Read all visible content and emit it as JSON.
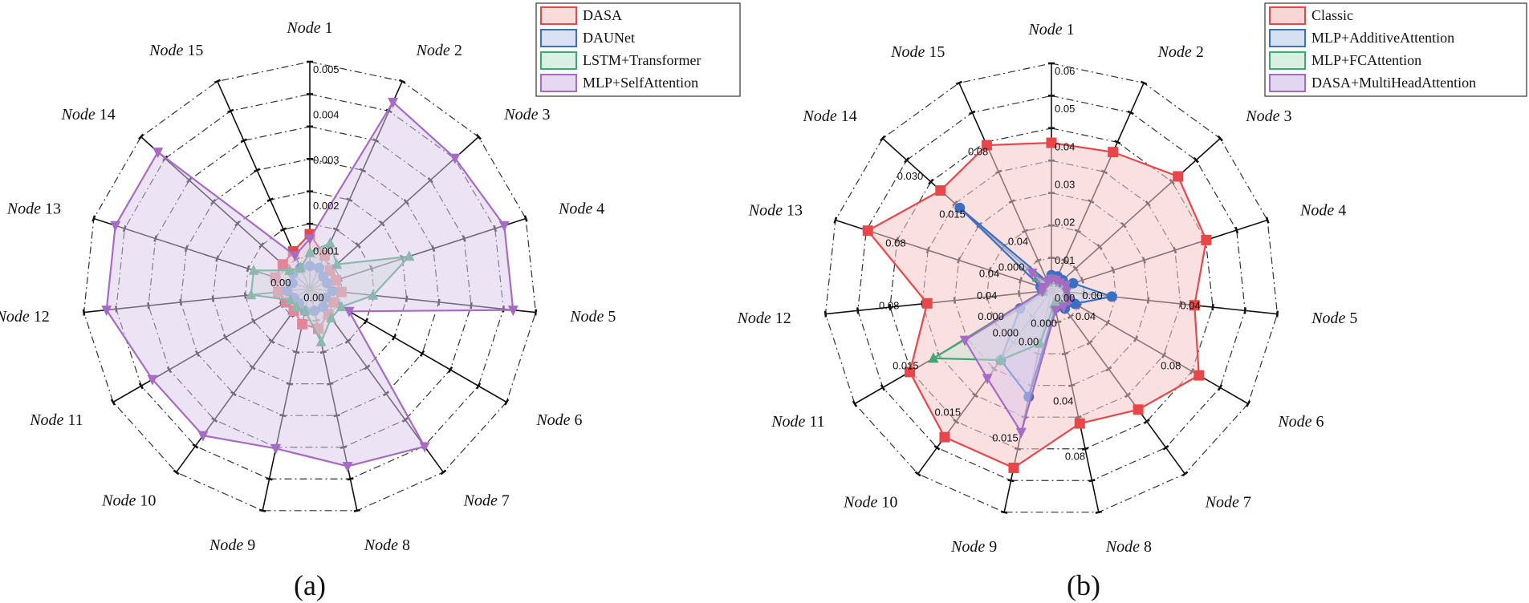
{
  "chart_data": [
    {
      "type": "radar",
      "panel_label": "(a)",
      "axes": [
        "Node 1",
        "Node 2",
        "Node 3",
        "Node 4",
        "Node 5",
        "Node 6",
        "Node 7",
        "Node 8",
        "Node 9",
        "Node 10",
        "Node 11",
        "Node 12",
        "Node 13",
        "Node 14",
        "Node 15"
      ],
      "rlim": [
        0,
        0.005
      ],
      "grid": true,
      "legend_position": "top-right",
      "radial_tick_labels": [
        {
          "axis": 0,
          "labels": [
            "0.001",
            "0.002",
            "0.003",
            "0.004",
            "0.005"
          ]
        },
        {
          "axis": 5,
          "labels": [
            "0.00"
          ]
        },
        {
          "axis": 12,
          "labels": [
            "0.00"
          ]
        }
      ],
      "series": [
        {
          "name": "DASA",
          "color": "#e8474a",
          "fill": "#f8c7c8",
          "fill_opacity": 0.45,
          "marker": "square",
          "values": [
            0.0012,
            0.0008,
            0.0006,
            0.0006,
            0.0007,
            0.0006,
            0.0007,
            0.0009,
            0.0008,
            0.0006,
            0.0006,
            0.0007,
            0.0008,
            0.0008,
            0.0009
          ]
        },
        {
          "name": "DAUNet",
          "color": "#3b6fc4",
          "fill": "#c3d3ec",
          "fill_opacity": 0.45,
          "marker": "circle",
          "values": [
            0.0005,
            0.0005,
            0.0004,
            0.0004,
            0.0005,
            0.0004,
            0.0005,
            0.0005,
            0.0005,
            0.0004,
            0.0004,
            0.0005,
            0.0004,
            0.0005,
            0.0005
          ]
        },
        {
          "name": "LSTM+Transformer",
          "color": "#3fa872",
          "fill": "#c8e8d6",
          "fill_opacity": 0.45,
          "marker": "triangle-up",
          "values": [
            0.0008,
            0.0011,
            0.0008,
            0.0023,
            0.0014,
            0.0008,
            0.0008,
            0.0012,
            0.0005,
            0.0005,
            0.0005,
            0.0013,
            0.0013,
            0.0006,
            0.0005
          ]
        },
        {
          "name": "MLP+SelfAttention",
          "color": "#a66bc4",
          "fill": "#dac8ea",
          "fill_opacity": 0.5,
          "marker": "triangle-down",
          "values": [
            0.0011,
            0.0045,
            0.0043,
            0.0045,
            0.0045,
            0.001,
            0.0043,
            0.004,
            0.0036,
            0.004,
            0.004,
            0.0045,
            0.0045,
            0.0045,
            0.0008
          ]
        }
      ]
    },
    {
      "type": "radar",
      "panel_label": "(b)",
      "axes": [
        "Node 1",
        "Node 2",
        "Node 3",
        "Node 4",
        "Node 5",
        "Node 6",
        "Node 7",
        "Node 8",
        "Node 9",
        "Node 10",
        "Node 11",
        "Node 12",
        "Node 13",
        "Node 14",
        "Node 15"
      ],
      "axis_ranges_note": "each axis has its own radial scale",
      "rlim_per_axis": [
        [
          0,
          0.06
        ],
        [
          0,
          0.06
        ],
        [
          0,
          0.06
        ],
        [
          0,
          0.06
        ],
        [
          0,
          0.06
        ],
        [
          0,
          0.1
        ],
        [
          0,
          0.1
        ],
        [
          0,
          0.1
        ],
        [
          0,
          0.025
        ],
        [
          0,
          0.025
        ],
        [
          0,
          0.025
        ],
        [
          0,
          0.1
        ],
        [
          0,
          0.1
        ],
        [
          0,
          0.035
        ],
        [
          0,
          0.1
        ]
      ],
      "grid": true,
      "legend_position": "top-right",
      "radial_tick_labels": [
        {
          "axis": 0,
          "labels": [
            "0.00",
            "0.01",
            "0.02",
            "0.03",
            "0.04",
            "0.05",
            "0.06"
          ]
        },
        {
          "axis": 4,
          "labels": [
            "0.00",
            "0.04"
          ]
        },
        {
          "axis": 5,
          "labels": [
            "0.04",
            "0.08"
          ]
        },
        {
          "axis": 7,
          "labels": [
            "0.000",
            "0.04",
            "0.08"
          ]
        },
        {
          "axis": 8,
          "labels": [
            "0.00",
            "0.015"
          ]
        },
        {
          "axis": 9,
          "labels": [
            "0.000",
            "0.015"
          ]
        },
        {
          "axis": 10,
          "labels": [
            "0.000",
            "0.015"
          ]
        },
        {
          "axis": 11,
          "labels": [
            "0.04",
            "0.08"
          ]
        },
        {
          "axis": 12,
          "labels": [
            "0.04",
            "0.08"
          ]
        },
        {
          "axis": 13,
          "labels": [
            "0.000",
            "0.015",
            "0.030"
          ]
        },
        {
          "axis": 14,
          "labels": [
            "0.04",
            "0.08"
          ]
        }
      ],
      "series": [
        {
          "name": "Classic",
          "color": "#e8474a",
          "fill": "#f8c7c8",
          "fill_opacity": 0.55,
          "marker": "square",
          "values": [
            0.039,
            0.04,
            0.045,
            0.043,
            0.038,
            0.075,
            0.065,
            0.06,
            0.02,
            0.02,
            0.018,
            0.055,
            0.085,
            0.023,
            0.07
          ]
        },
        {
          "name": "MLP+AdditiveAttention",
          "color": "#3b6fc4",
          "fill": "#c3d3ec",
          "fill_opacity": 0.5,
          "marker": "circle",
          "values": [
            0.004,
            0.004,
            0.004,
            0.006,
            0.016,
            0.012,
            0.01,
            0.008,
            0.012,
            0.0095,
            0.004,
            0.004,
            0.005,
            0.019,
            0.004
          ]
        },
        {
          "name": "MLP+FCAttention",
          "color": "#3fa872",
          "fill": "#c8e8d6",
          "fill_opacity": 0.5,
          "marker": "triangle-up",
          "values": [
            0.003,
            0.003,
            0.003,
            0.004,
            0.004,
            0.008,
            0.007,
            0.006,
            0.006,
            0.0095,
            0.015,
            0.004,
            0.004,
            0.003,
            0.004
          ]
        },
        {
          "name": "DASA+MultiHeadAttention",
          "color": "#a66bc4",
          "fill": "#dac8ea",
          "fill_opacity": 0.55,
          "marker": "triangle-down",
          "values": [
            0.003,
            0.003,
            0.003,
            0.004,
            0.004,
            0.009,
            0.009,
            0.009,
            0.016,
            0.012,
            0.011,
            0.004,
            0.004,
            0.004,
            0.004
          ]
        }
      ]
    }
  ]
}
